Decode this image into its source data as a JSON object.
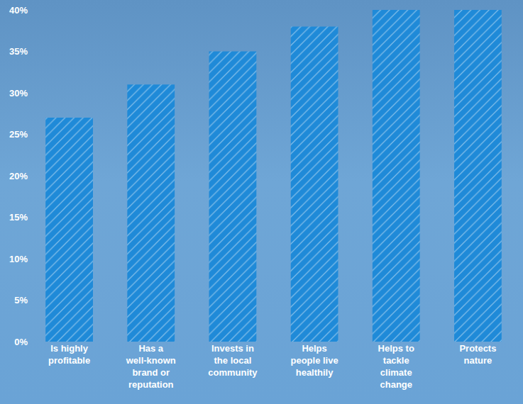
{
  "chart_data": {
    "type": "bar",
    "categories": [
      "Is highly profitable",
      "Has a well-known brand or reputation",
      "Invests in the local community",
      "Helps people live healthily",
      "Helps to tackle climate change",
      "Protects nature"
    ],
    "values": [
      27,
      31,
      35,
      38,
      40,
      40
    ],
    "color": "#1f8ad8",
    "ylim": [
      0,
      40
    ],
    "yticks": [
      {
        "value": 0,
        "label": "0%"
      },
      {
        "value": 5,
        "label": "5%"
      },
      {
        "value": 10,
        "label": "10%"
      },
      {
        "value": 15,
        "label": "15%"
      },
      {
        "value": 20,
        "label": "20%"
      },
      {
        "value": 25,
        "label": "25%"
      },
      {
        "value": 30,
        "label": "30%"
      },
      {
        "value": 35,
        "label": "35%"
      },
      {
        "value": 40,
        "label": "40%"
      }
    ],
    "grid": false
  }
}
